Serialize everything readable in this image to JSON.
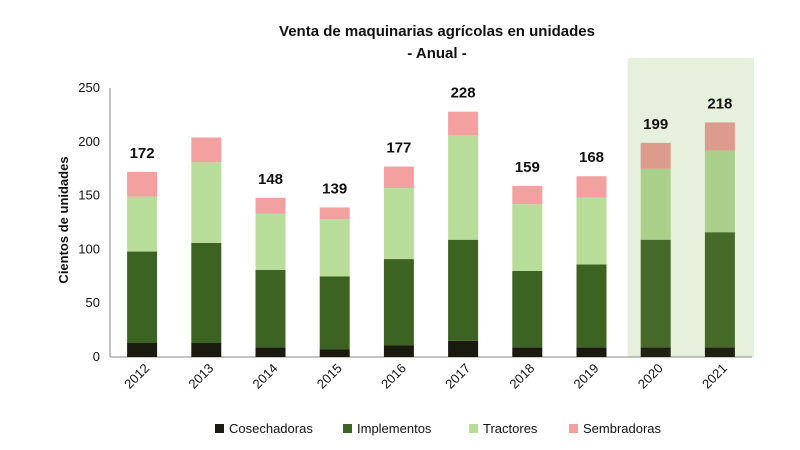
{
  "chart_data": {
    "type": "bar",
    "stacked": true,
    "title": "Venta de maquinarias agrícolas en unidades",
    "subtitle": "- Anual -",
    "xlabel": "",
    "ylabel": "Cientos de unidades",
    "ylim": [
      0,
      250
    ],
    "yticks": [
      0,
      50,
      100,
      150,
      200,
      250
    ],
    "grid": false,
    "legend_position": "bottom",
    "categories": [
      "2012",
      "2013",
      "2014",
      "2015",
      "2016",
      "2017",
      "2018",
      "2019",
      "2020",
      "2021"
    ],
    "highlighted_categories": [
      "2020",
      "2021"
    ],
    "totals": [
      172,
      null,
      148,
      139,
      177,
      228,
      159,
      168,
      199,
      218
    ],
    "totals_labels": [
      "172",
      "",
      "148",
      "139",
      "177",
      "228",
      "159",
      "168",
      "199",
      "218"
    ],
    "series": [
      {
        "name": "Cosechadoras",
        "color": "#1a1a0e",
        "values": [
          13,
          13,
          9,
          7,
          11,
          15,
          9,
          9,
          9,
          9
        ]
      },
      {
        "name": "Implementos",
        "color": "#3d6322",
        "values": [
          85,
          93,
          72,
          68,
          80,
          94,
          71,
          77,
          100,
          107
        ]
      },
      {
        "name": "Tractores",
        "color": "#b8dc9a",
        "values": [
          51,
          75,
          52,
          53,
          66,
          97,
          62,
          62,
          66,
          76
        ]
      },
      {
        "name": "Sembradoras",
        "color": "#f2a0a0",
        "values": [
          23,
          23,
          15,
          11,
          20,
          22,
          17,
          20,
          24,
          26
        ]
      }
    ],
    "highlight_color": "#e7f0dd",
    "highlight_series_colors": [
      "#1f2210",
      "#466a29",
      "#a9cf8a",
      "#dc9b8c"
    ]
  }
}
